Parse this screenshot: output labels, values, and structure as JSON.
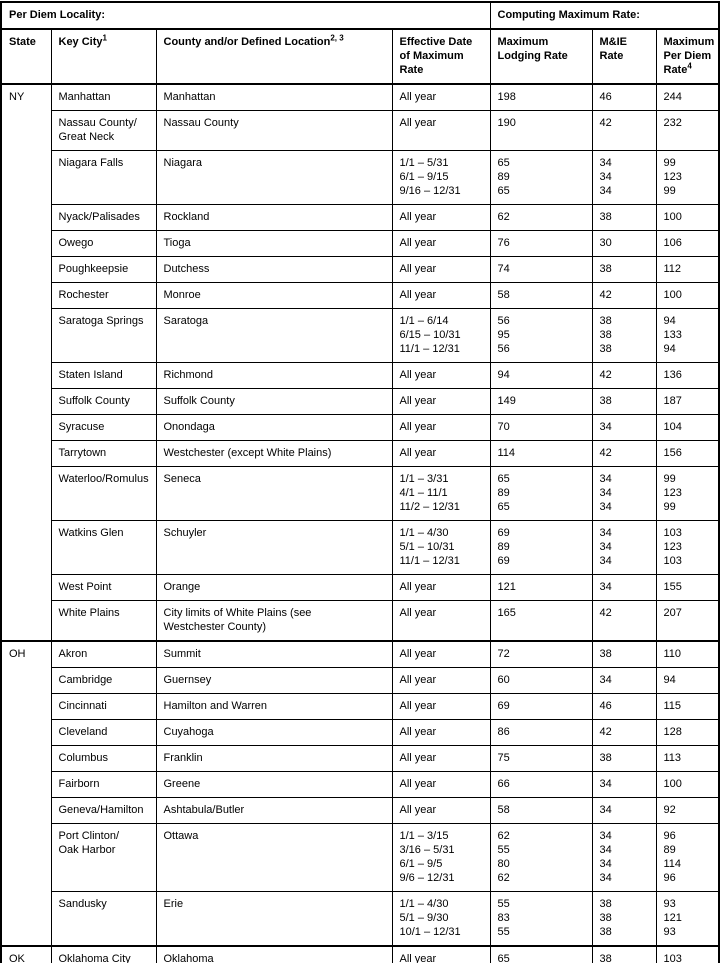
{
  "header": {
    "per_diem_locality": "Per Diem Locality:",
    "computing_maximum_rate": "Computing Maximum Rate:",
    "columns": [
      {
        "key": "state",
        "label": "State",
        "sup": ""
      },
      {
        "key": "key_city",
        "label": "Key City",
        "sup": "1"
      },
      {
        "key": "location",
        "label": "County and/or Defined Location",
        "sup": "2, 3"
      },
      {
        "key": "dates",
        "label": "Effective Date of Maximum Rate",
        "sup": ""
      },
      {
        "key": "lodging",
        "label": "Maximum Lodging Rate",
        "sup": ""
      },
      {
        "key": "mie",
        "label": "M&IE Rate",
        "sup": ""
      },
      {
        "key": "total",
        "label": "Maximum Per Diem Rate",
        "sup": "4"
      }
    ]
  },
  "sections": [
    {
      "state": "NY",
      "rows": [
        {
          "key_city": "Manhattan",
          "location": "Manhattan",
          "dates": [
            "All year"
          ],
          "lodging": [
            "198"
          ],
          "mie": [
            "46"
          ],
          "total": [
            "244"
          ]
        },
        {
          "key_city": "Nassau County/\nGreat Neck",
          "location": "Nassau County",
          "dates": [
            "All year"
          ],
          "lodging": [
            "190"
          ],
          "mie": [
            "42"
          ],
          "total": [
            "232"
          ]
        },
        {
          "key_city": "Niagara Falls",
          "location": "Niagara",
          "dates": [
            "1/1 – 5/31",
            "6/1 – 9/15",
            "9/16 – 12/31"
          ],
          "lodging": [
            "65",
            "89",
            "65"
          ],
          "mie": [
            "34",
            "34",
            "34"
          ],
          "total": [
            "99",
            "123",
            "99"
          ]
        },
        {
          "key_city": "Nyack/Palisades",
          "location": "Rockland",
          "dates": [
            "All year"
          ],
          "lodging": [
            "62"
          ],
          "mie": [
            "38"
          ],
          "total": [
            "100"
          ]
        },
        {
          "key_city": "Owego",
          "location": "Tioga",
          "dates": [
            "All year"
          ],
          "lodging": [
            "76"
          ],
          "mie": [
            "30"
          ],
          "total": [
            "106"
          ]
        },
        {
          "key_city": "Poughkeepsie",
          "location": "Dutchess",
          "dates": [
            "All year"
          ],
          "lodging": [
            "74"
          ],
          "mie": [
            "38"
          ],
          "total": [
            "112"
          ]
        },
        {
          "key_city": "Rochester",
          "location": "Monroe",
          "dates": [
            "All year"
          ],
          "lodging": [
            "58"
          ],
          "mie": [
            "42"
          ],
          "total": [
            "100"
          ]
        },
        {
          "key_city": "Saratoga Springs",
          "location": "Saratoga",
          "dates": [
            "1/1 – 6/14",
            "6/15 – 10/31",
            "11/1 – 12/31"
          ],
          "lodging": [
            "56",
            "95",
            "56"
          ],
          "mie": [
            "38",
            "38",
            "38"
          ],
          "total": [
            "94",
            "133",
            "94"
          ]
        },
        {
          "key_city": "Staten Island",
          "location": "Richmond",
          "dates": [
            "All year"
          ],
          "lodging": [
            "94"
          ],
          "mie": [
            "42"
          ],
          "total": [
            "136"
          ]
        },
        {
          "key_city": "Suffolk County",
          "location": "Suffolk County",
          "dates": [
            "All year"
          ],
          "lodging": [
            "149"
          ],
          "mie": [
            "38"
          ],
          "total": [
            "187"
          ]
        },
        {
          "key_city": "Syracuse",
          "location": "Onondaga",
          "dates": [
            "All year"
          ],
          "lodging": [
            "70"
          ],
          "mie": [
            "34"
          ],
          "total": [
            "104"
          ]
        },
        {
          "key_city": "Tarrytown",
          "location": "Westchester (except White Plains)",
          "dates": [
            "All year"
          ],
          "lodging": [
            "114"
          ],
          "mie": [
            "42"
          ],
          "total": [
            "156"
          ]
        },
        {
          "key_city": "Waterloo/Romulus",
          "location": "Seneca",
          "dates": [
            "1/1 – 3/31",
            "4/1 – 11/1",
            "11/2 – 12/31"
          ],
          "lodging": [
            "65",
            "89",
            "65"
          ],
          "mie": [
            "34",
            "34",
            "34"
          ],
          "total": [
            "99",
            "123",
            "99"
          ]
        },
        {
          "key_city": "Watkins Glen",
          "location": "Schuyler",
          "dates": [
            "1/1 – 4/30",
            "5/1 – 10/31",
            "11/1 – 12/31"
          ],
          "lodging": [
            "69",
            "89",
            "69"
          ],
          "mie": [
            "34",
            "34",
            "34"
          ],
          "total": [
            "103",
            "123",
            "103"
          ]
        },
        {
          "key_city": "West Point",
          "location": "Orange",
          "dates": [
            "All year"
          ],
          "lodging": [
            "121"
          ],
          "mie": [
            "34"
          ],
          "total": [
            "155"
          ]
        },
        {
          "key_city": "White Plains",
          "location": "City limits of White Plains (see\nWestchester County)",
          "dates": [
            "All year"
          ],
          "lodging": [
            "165"
          ],
          "mie": [
            "42"
          ],
          "total": [
            "207"
          ]
        }
      ]
    },
    {
      "state": "OH",
      "rows": [
        {
          "key_city": "Akron",
          "location": "Summit",
          "dates": [
            "All year"
          ],
          "lodging": [
            "72"
          ],
          "mie": [
            "38"
          ],
          "total": [
            "110"
          ]
        },
        {
          "key_city": "Cambridge",
          "location": "Guernsey",
          "dates": [
            "All year"
          ],
          "lodging": [
            "60"
          ],
          "mie": [
            "34"
          ],
          "total": [
            "94"
          ]
        },
        {
          "key_city": "Cincinnati",
          "location": "Hamilton and Warren",
          "dates": [
            "All year"
          ],
          "lodging": [
            "69"
          ],
          "mie": [
            "46"
          ],
          "total": [
            "115"
          ]
        },
        {
          "key_city": "Cleveland",
          "location": "Cuyahoga",
          "dates": [
            "All year"
          ],
          "lodging": [
            "86"
          ],
          "mie": [
            "42"
          ],
          "total": [
            "128"
          ]
        },
        {
          "key_city": "Columbus",
          "location": "Franklin",
          "dates": [
            "All year"
          ],
          "lodging": [
            "75"
          ],
          "mie": [
            "38"
          ],
          "total": [
            "113"
          ]
        },
        {
          "key_city": "Fairborn",
          "location": "Greene",
          "dates": [
            "All year"
          ],
          "lodging": [
            "66"
          ],
          "mie": [
            "34"
          ],
          "total": [
            "100"
          ]
        },
        {
          "key_city": "Geneva/Hamilton",
          "location": "Ashtabula/Butler",
          "dates": [
            "All year"
          ],
          "lodging": [
            "58"
          ],
          "mie": [
            "34"
          ],
          "total": [
            "92"
          ]
        },
        {
          "key_city": "Port Clinton/\nOak Harbor",
          "location": "Ottawa",
          "dates": [
            "1/1 – 3/15",
            "3/16 – 5/31",
            "6/1 – 9/5",
            "9/6 – 12/31"
          ],
          "lodging": [
            "62",
            "55",
            "80",
            "62"
          ],
          "mie": [
            "34",
            "34",
            "34",
            "34"
          ],
          "total": [
            "96",
            "89",
            "114",
            "96"
          ]
        },
        {
          "key_city": "Sandusky",
          "location": "Erie",
          "dates": [
            "1/1 – 4/30",
            "5/1 – 9/30",
            "10/1 – 12/31"
          ],
          "lodging": [
            "55",
            "83",
            "55"
          ],
          "mie": [
            "38",
            "38",
            "38"
          ],
          "total": [
            "93",
            "121",
            "93"
          ]
        }
      ]
    },
    {
      "state": "OK",
      "rows": [
        {
          "key_city": "Oklahoma City",
          "location": "Oklahoma",
          "dates": [
            "All year"
          ],
          "lodging": [
            "65"
          ],
          "mie": [
            "38"
          ],
          "total": [
            "103"
          ]
        }
      ]
    }
  ]
}
